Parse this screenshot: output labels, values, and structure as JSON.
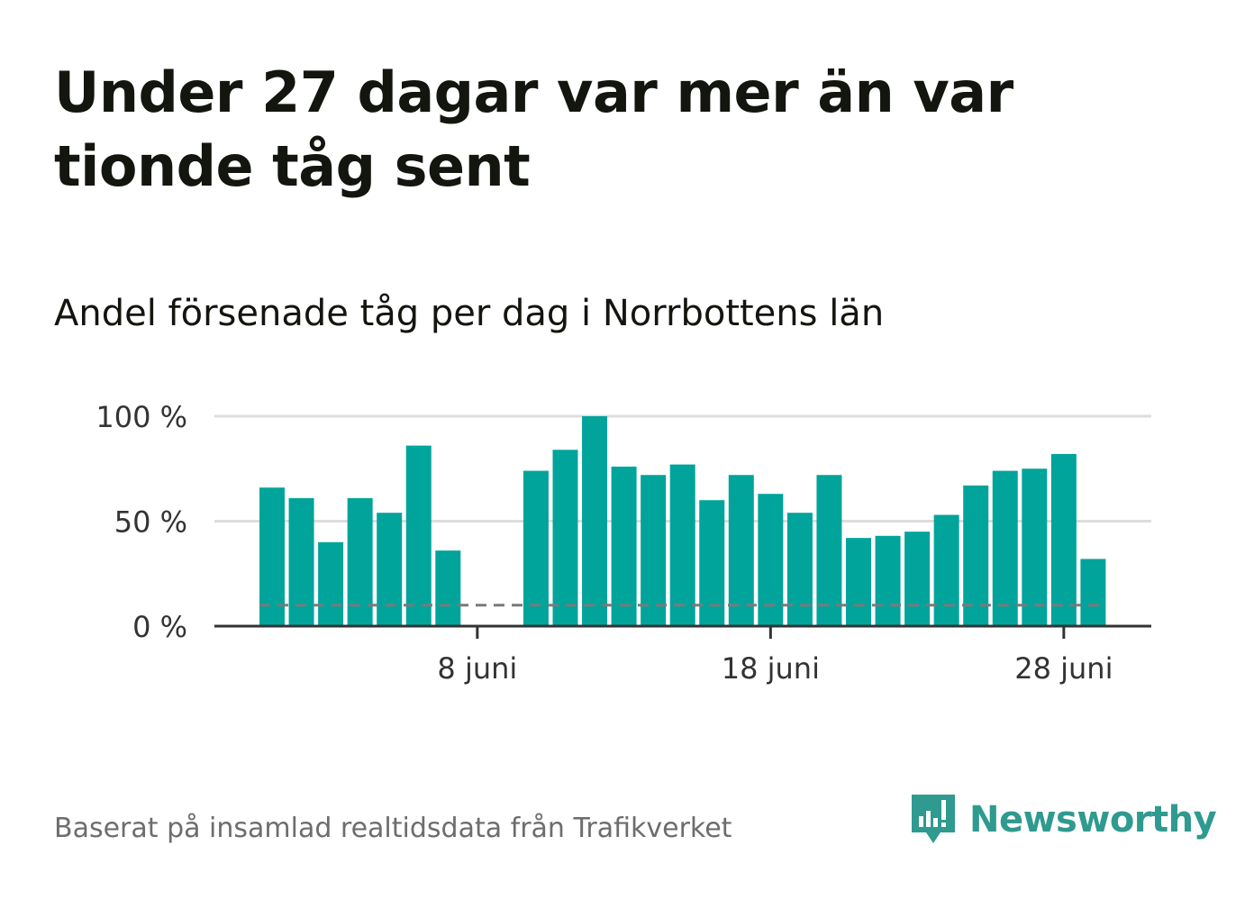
{
  "title": "Under 27 dagar var mer än var tionde tåg sent",
  "subtitle": "Andel försenade tåg per dag i Norrbottens län",
  "footer": {
    "source": "Baserat på insamlad realtidsdata från Trafikverket",
    "brand": "Newsworthy"
  },
  "colors": {
    "bar": "#00a49a",
    "reference_line": "#7a7a7a",
    "gridline": "#dddddd",
    "axis": "#333333",
    "brand": "#2f9a8f"
  },
  "chart_data": {
    "type": "bar",
    "x": [
      "1 juni",
      "2 juni",
      "3 juni",
      "4 juni",
      "5 juni",
      "6 juni",
      "7 juni",
      "8 juni",
      "9 juni",
      "10 juni",
      "11 juni",
      "12 juni",
      "13 juni",
      "14 juni",
      "15 juni",
      "16 juni",
      "17 juni",
      "18 juni",
      "19 juni",
      "20 juni",
      "21 juni",
      "22 juni",
      "23 juni",
      "24 juni",
      "25 juni",
      "26 juni",
      "27 juni",
      "28 juni",
      "29 juni"
    ],
    "values": [
      66,
      61,
      40,
      61,
      54,
      86,
      36,
      null,
      null,
      74,
      84,
      100,
      76,
      72,
      77,
      60,
      72,
      63,
      54,
      72,
      42,
      43,
      45,
      53,
      67,
      74,
      75,
      82,
      32
    ],
    "reference_line": 10,
    "ylim": [
      0,
      100
    ],
    "y_ticks": [
      0,
      50,
      100
    ],
    "y_tick_labels": [
      "0 %",
      "50 %",
      "100 %"
    ],
    "x_ticks": [
      "8 juni",
      "18 juni",
      "28 juni"
    ],
    "grid": true
  }
}
